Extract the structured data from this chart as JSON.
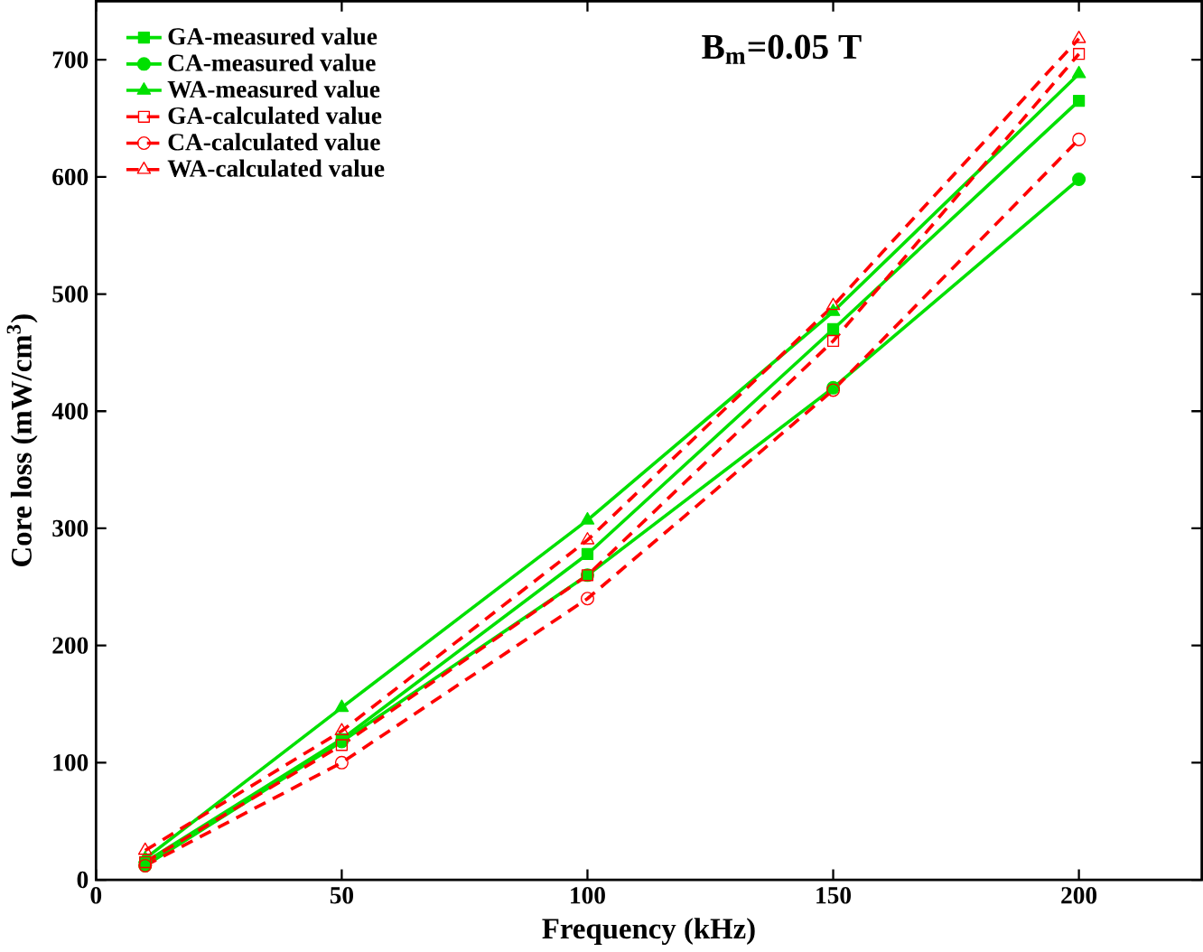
{
  "chart_data": {
    "type": "line",
    "xlabel": "Frequency (kHz)",
    "ylabel": "Core loss (mW/cm$^{3}$)",
    "annotations": [
      "B$_{m}$=0.05 T"
    ],
    "x": [
      10,
      50,
      100,
      150,
      200
    ],
    "series": [
      {
        "name": "GA-measured value",
        "color": "#00e000",
        "marker": "square",
        "line_style": "solid",
        "values": [
          15,
          120,
          278,
          470,
          665
        ]
      },
      {
        "name": "CA-measured value",
        "color": "#00e000",
        "marker": "circle",
        "line_style": "solid",
        "values": [
          12,
          118,
          260,
          420,
          598
        ]
      },
      {
        "name": "WA-measured value",
        "color": "#00e000",
        "marker": "triangle",
        "line_style": "solid",
        "values": [
          18,
          147,
          307,
          485,
          688
        ]
      },
      {
        "name": "GA-calculated value",
        "color": "#ff0000",
        "marker": "square",
        "line_style": "dashed",
        "values": [
          15,
          115,
          260,
          460,
          705
        ]
      },
      {
        "name": "CA-calculated value",
        "color": "#ff0000",
        "marker": "circle",
        "line_style": "dashed",
        "values": [
          12,
          100,
          240,
          418,
          632
        ]
      },
      {
        "name": "WA-calculated value",
        "color": "#ff0000",
        "marker": "triangle",
        "line_style": "dashed",
        "values": [
          25,
          127,
          290,
          490,
          718
        ]
      }
    ],
    "xlim": [
      0,
      225
    ],
    "ylim": [
      0,
      750
    ],
    "xticks": [
      0,
      50,
      100,
      150,
      200
    ],
    "yticks": [
      0,
      100,
      200,
      300,
      400,
      500,
      600,
      700
    ],
    "grid": false,
    "legend": "top left"
  }
}
